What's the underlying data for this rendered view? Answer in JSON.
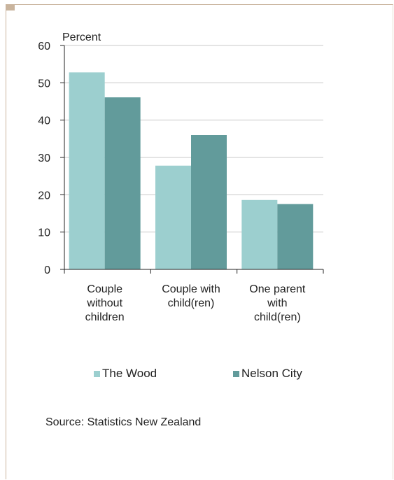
{
  "chart_data": {
    "type": "bar",
    "ylabel": "Percent",
    "ylim": [
      0,
      60
    ],
    "yticks": [
      0,
      10,
      20,
      30,
      40,
      50,
      60
    ],
    "categories": [
      [
        "Couple",
        "without",
        "children"
      ],
      [
        "Couple with",
        "child(ren)"
      ],
      [
        "One parent",
        "with",
        "child(ren)"
      ]
    ],
    "series": [
      {
        "name": "The Wood",
        "values": [
          52.8,
          27.8,
          18.6
        ],
        "color": "#9ccfcf"
      },
      {
        "name": "Nelson City",
        "values": [
          46.1,
          36.0,
          17.5
        ],
        "color": "#629b9b"
      }
    ],
    "grid": true,
    "legend": "bottom"
  },
  "source": "Source: Statistics New Zealand"
}
